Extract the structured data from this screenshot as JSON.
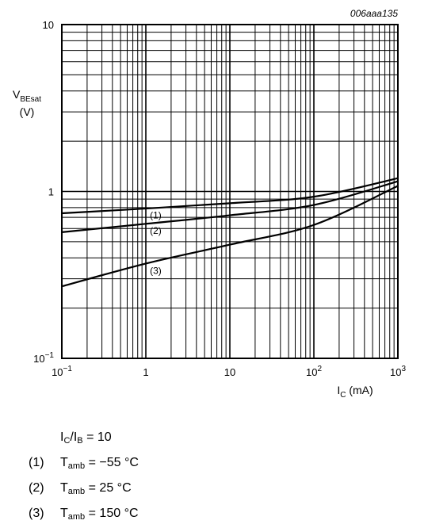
{
  "chart_data": {
    "type": "line",
    "code": "006aaa135",
    "xscale": "log",
    "yscale": "log",
    "xlim": [
      0.1,
      1000
    ],
    "ylim": [
      0.1,
      10
    ],
    "grid": true,
    "xlabel": {
      "main": "I",
      "sub": "C",
      "unit": " (mA)"
    },
    "ylabel": {
      "main": "V",
      "sub": "BEsat",
      "unit": "(V)"
    },
    "x_ticks": [
      {
        "base": "10",
        "exp": "−1"
      },
      {
        "text": "1"
      },
      {
        "text": "10"
      },
      {
        "base": "10",
        "exp": "2"
      },
      {
        "base": "10",
        "exp": "3"
      }
    ],
    "y_ticks": [
      {
        "base": "10",
        "exp": "−1"
      },
      {
        "text": "1"
      },
      {
        "text": "10"
      }
    ],
    "series": [
      {
        "name": "(1)",
        "x": [
          0.1,
          1,
          10,
          100,
          1000
        ],
        "y": [
          0.74,
          0.79,
          0.85,
          0.93,
          1.2
        ]
      },
      {
        "name": "(2)",
        "x": [
          0.1,
          1,
          10,
          100,
          1000
        ],
        "y": [
          0.57,
          0.64,
          0.72,
          0.83,
          1.15
        ]
      },
      {
        "name": "(3)",
        "x": [
          0.1,
          1,
          10,
          100,
          1000
        ],
        "y": [
          0.27,
          0.37,
          0.48,
          0.63,
          1.08
        ]
      }
    ]
  },
  "conditions": {
    "ratio": {
      "a": "I",
      "a_sub": "C",
      "slash": "/I",
      "b_sub": "B",
      "rest": " = 10"
    },
    "items": [
      {
        "idx": "(1)",
        "t": "T",
        "t_sub": "amb",
        "value": " = −55 °C"
      },
      {
        "idx": "(2)",
        "t": "T",
        "t_sub": "amb",
        "value": " = 25 °C"
      },
      {
        "idx": "(3)",
        "t": "T",
        "t_sub": "amb",
        "value": " = 150 °C"
      }
    ]
  }
}
